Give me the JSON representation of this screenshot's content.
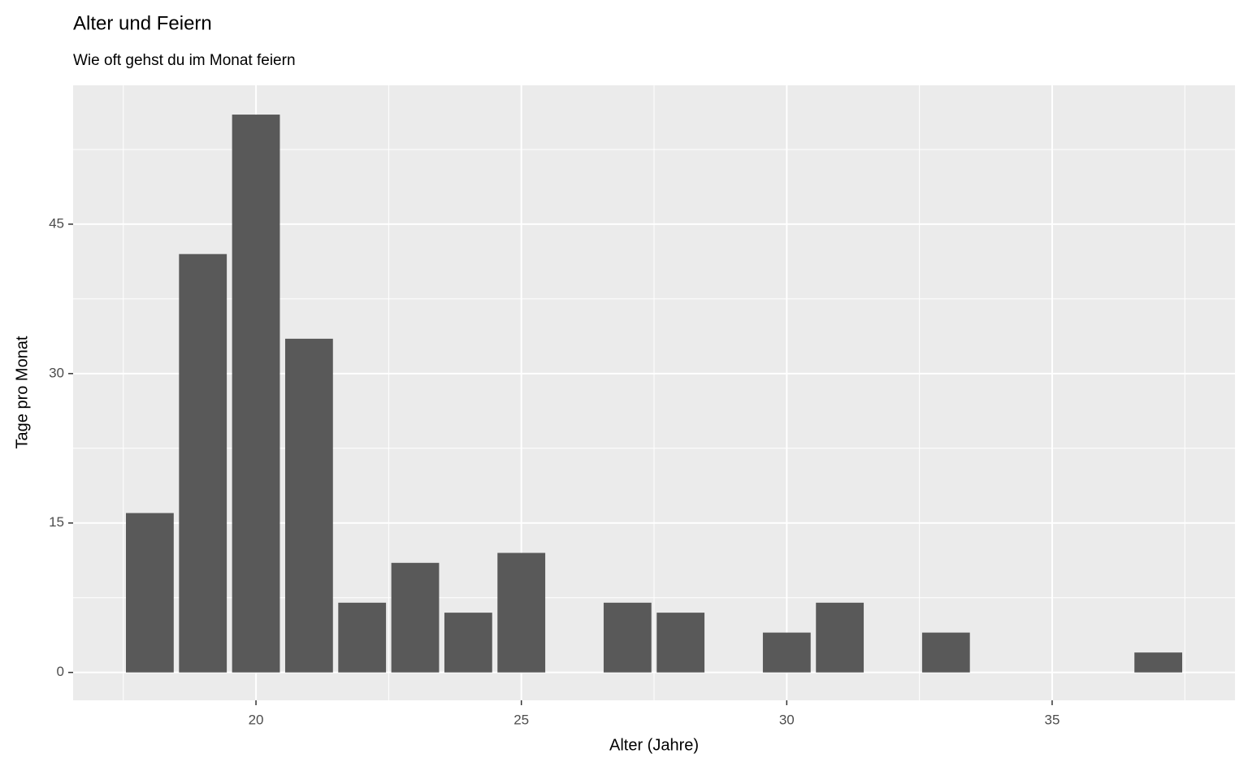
{
  "chart_data": {
    "type": "bar",
    "title": "Alter und Feiern",
    "subtitle": "Wie oft gehst du im Monat feiern",
    "x_label": "Alter (Jahre)",
    "y_label": "Tage pro Monat",
    "x": [
      18,
      19,
      20,
      21,
      22,
      23,
      24,
      25,
      27,
      28,
      30,
      31,
      33,
      37
    ],
    "values": [
      16,
      42,
      56,
      33.5,
      7,
      11,
      6,
      12,
      7,
      6,
      4,
      7,
      4,
      2
    ],
    "color": "#595959",
    "xlim": [
      16.555,
      38.445
    ],
    "xticks": [
      20,
      25,
      30,
      35
    ],
    "ylim": [
      -2.8,
      58.94
    ],
    "yticks": [
      0,
      15,
      30,
      45
    ],
    "grid": true
  }
}
